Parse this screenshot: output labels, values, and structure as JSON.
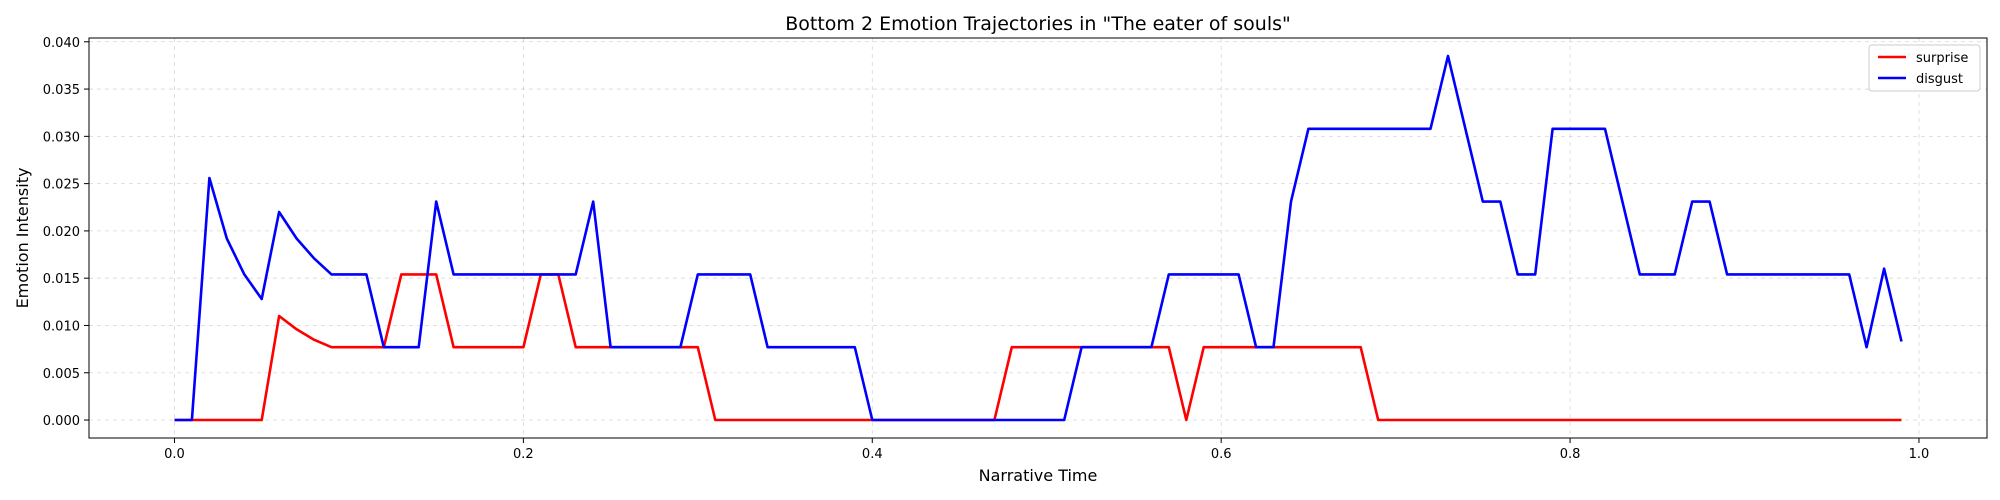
{
  "chart_data": {
    "type": "line",
    "title": "Bottom 2 Emotion Trajectories in \"The eater of souls\"",
    "xlabel": "Narrative Time",
    "ylabel": "Emotion Intensity",
    "xlim": [
      -0.049,
      1.039
    ],
    "ylim": [
      -0.0019,
      0.0404
    ],
    "xticks": [
      0.0,
      0.2,
      0.4,
      0.6,
      0.8,
      1.0
    ],
    "xtick_labels": [
      "0.0",
      "0.2",
      "0.4",
      "0.6",
      "0.8",
      "1.0"
    ],
    "yticks": [
      0.0,
      0.005,
      0.01,
      0.015,
      0.02,
      0.025,
      0.03,
      0.035,
      0.04
    ],
    "ytick_labels": [
      "0.000",
      "0.005",
      "0.010",
      "0.015",
      "0.020",
      "0.025",
      "0.030",
      "0.035",
      "0.040"
    ],
    "grid": true,
    "legend_position": "top-right",
    "x": [
      0.0,
      0.01,
      0.02,
      0.03,
      0.04,
      0.05,
      0.06,
      0.07,
      0.08,
      0.09,
      0.1,
      0.11,
      0.12,
      0.13,
      0.14,
      0.15,
      0.16,
      0.17,
      0.18,
      0.19,
      0.2,
      0.21,
      0.22,
      0.23,
      0.24,
      0.25,
      0.26,
      0.27,
      0.28,
      0.29,
      0.3,
      0.31,
      0.32,
      0.33,
      0.34,
      0.35,
      0.36,
      0.37,
      0.38,
      0.39,
      0.4,
      0.41,
      0.42,
      0.43,
      0.44,
      0.45,
      0.46,
      0.47,
      0.48,
      0.49,
      0.5,
      0.51,
      0.52,
      0.53,
      0.54,
      0.55,
      0.56,
      0.57,
      0.58,
      0.59,
      0.6,
      0.61,
      0.62,
      0.63,
      0.64,
      0.65,
      0.66,
      0.67,
      0.68,
      0.69,
      0.7,
      0.71,
      0.72,
      0.73,
      0.74,
      0.75,
      0.76,
      0.77,
      0.78,
      0.79,
      0.8,
      0.81,
      0.82,
      0.83,
      0.84,
      0.85,
      0.86,
      0.87,
      0.88,
      0.89,
      0.9,
      0.91,
      0.92,
      0.93,
      0.94,
      0.95,
      0.96,
      0.97,
      0.98,
      0.99
    ],
    "series": [
      {
        "name": "surprise",
        "color": "#ff0000",
        "values": [
          0,
          0,
          0,
          0,
          0,
          0,
          0.011,
          0.0096,
          0.0085,
          0.0077,
          0.0077,
          0.0077,
          0.0077,
          0.0154,
          0.0154,
          0.0154,
          0.0077,
          0.0077,
          0.0077,
          0.0077,
          0.0077,
          0.0154,
          0.0154,
          0.0077,
          0.0077,
          0.0077,
          0.0077,
          0.0077,
          0.0077,
          0.0077,
          0.0077,
          0,
          0,
          0,
          0,
          0,
          0,
          0,
          0,
          0,
          0,
          0,
          0,
          0,
          0,
          0,
          0,
          0,
          0.0077,
          0.0077,
          0.0077,
          0.0077,
          0.0077,
          0.0077,
          0.0077,
          0.0077,
          0.0077,
          0.0077,
          0,
          0.0077,
          0.0077,
          0.0077,
          0.0077,
          0.0077,
          0.0077,
          0.0077,
          0.0077,
          0.0077,
          0.0077,
          0,
          0,
          0,
          0,
          0,
          0,
          0,
          0,
          0,
          0,
          0,
          0,
          0,
          0,
          0,
          0,
          0,
          0,
          0,
          0,
          0,
          0,
          0,
          0,
          0,
          0,
          0,
          0,
          0,
          0,
          0
        ]
      },
      {
        "name": "disgust",
        "color": "#0000ff",
        "values": [
          0,
          0,
          0.0256,
          0.0192,
          0.0154,
          0.0128,
          0.022,
          0.0192,
          0.0171,
          0.0154,
          0.0154,
          0.0154,
          0.0077,
          0.0077,
          0.0077,
          0.0231,
          0.0154,
          0.0154,
          0.0154,
          0.0154,
          0.0154,
          0.0154,
          0.0154,
          0.0154,
          0.0231,
          0.0077,
          0.0077,
          0.0077,
          0.0077,
          0.0077,
          0.0154,
          0.0154,
          0.0154,
          0.0154,
          0.0077,
          0.0077,
          0.0077,
          0.0077,
          0.0077,
          0.0077,
          0,
          0,
          0,
          0,
          0,
          0,
          0,
          0,
          0,
          0,
          0,
          0,
          0.0077,
          0.0077,
          0.0077,
          0.0077,
          0.0077,
          0.0154,
          0.0154,
          0.0154,
          0.0154,
          0.0154,
          0.0077,
          0.0077,
          0.0231,
          0.0308,
          0.0308,
          0.0308,
          0.0308,
          0.0308,
          0.0308,
          0.0308,
          0.0308,
          0.0385,
          0.0308,
          0.0231,
          0.0231,
          0.0154,
          0.0154,
          0.0308,
          0.0308,
          0.0308,
          0.0308,
          0.0231,
          0.0154,
          0.0154,
          0.0154,
          0.0231,
          0.0231,
          0.0154,
          0.0154,
          0.0154,
          0.0154,
          0.0154,
          0.0154,
          0.0154,
          0.0154,
          0.0077,
          0.016,
          0.0083
        ]
      }
    ]
  }
}
